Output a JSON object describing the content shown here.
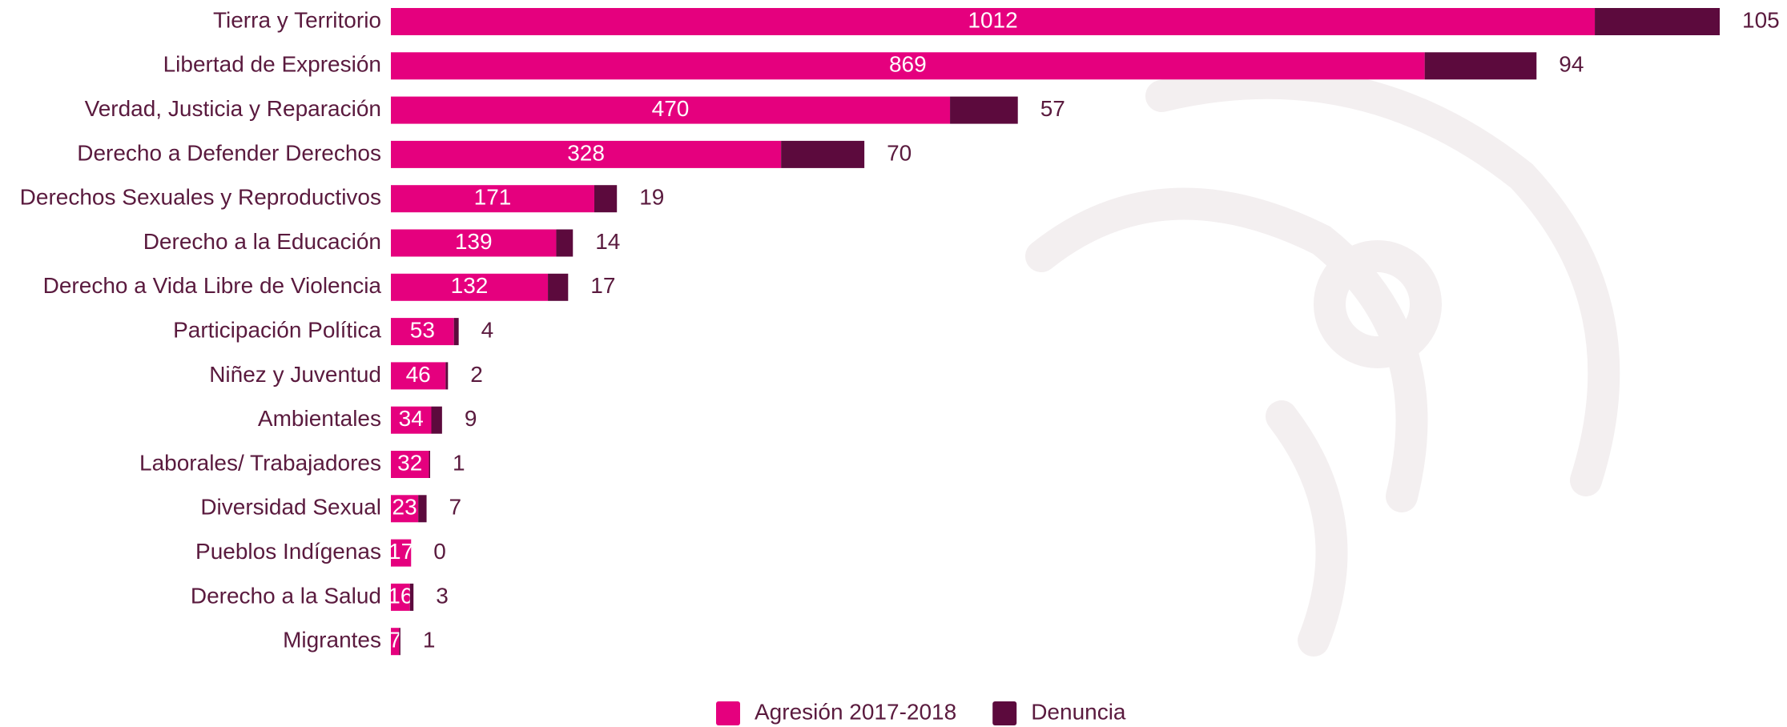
{
  "chart_data": {
    "type": "stacked-bar-horizontal",
    "categories": [
      "Tierra y Territorio",
      "Libertad de Expresión",
      "Verdad, Justicia y Reparación",
      "Derecho a Defender Derechos",
      "Derechos Sexuales y Reproductivos",
      "Derecho a la Educación",
      "Derecho a Vida Libre de Violencia",
      "Participación Política",
      "Niñez y Juventud",
      "Ambientales",
      "Laborales/ Trabajadores",
      "Diversidad Sexual",
      "Pueblos Indígenas",
      "Derecho a la Salud",
      "Migrantes"
    ],
    "series": [
      {
        "name": "Agresión 2017-2018",
        "color": "#e5007e",
        "values": [
          1012,
          869,
          470,
          328,
          171,
          139,
          132,
          53,
          46,
          34,
          32,
          23,
          17,
          16,
          7
        ]
      },
      {
        "name": "Denuncia",
        "color": "#5c0a3d",
        "values": [
          105,
          94,
          57,
          70,
          19,
          14,
          17,
          4,
          2,
          9,
          1,
          7,
          0,
          3,
          1
        ]
      }
    ],
    "legend": "bottom"
  }
}
